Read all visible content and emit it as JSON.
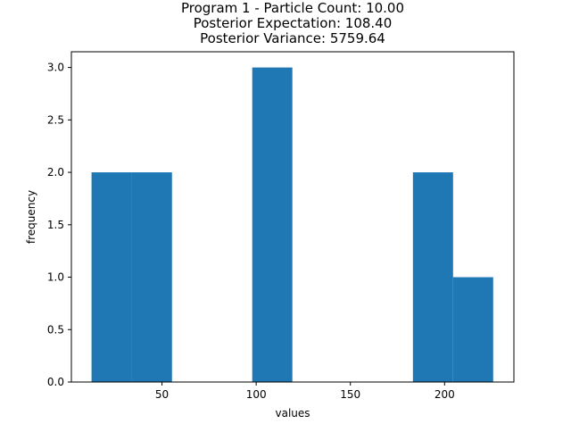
{
  "chart_data": {
    "type": "bar",
    "subtype": "histogram",
    "title_lines": [
      "Program 1 - Particle Count: 10.00",
      "Posterior Expectation: 108.40",
      "Posterior Variance: 5759.64"
    ],
    "xlabel": "values",
    "ylabel": "frequency",
    "xlim": [
      1.9,
      236.8
    ],
    "ylim": [
      0,
      3.15
    ],
    "xticks": [
      50,
      100,
      150,
      200
    ],
    "xtick_labels": [
      "50",
      "100",
      "150",
      "200"
    ],
    "yticks": [
      0.0,
      0.5,
      1.0,
      1.5,
      2.0,
      2.5,
      3.0
    ],
    "ytick_labels": [
      "0.0",
      "0.5",
      "1.0",
      "1.5",
      "2.0",
      "2.5",
      "3.0"
    ],
    "bin_edges": [
      12.6,
      33.9,
      55.3,
      76.6,
      97.9,
      119.2,
      140.6,
      161.9,
      183.2,
      204.5,
      225.8
    ],
    "values": [
      2,
      2,
      0,
      0,
      3,
      0,
      0,
      0,
      2,
      1
    ],
    "grid": false,
    "legend": "none",
    "colors": {
      "bar": "#1f77b4",
      "axes": "#000000",
      "background": "#ffffff"
    }
  }
}
